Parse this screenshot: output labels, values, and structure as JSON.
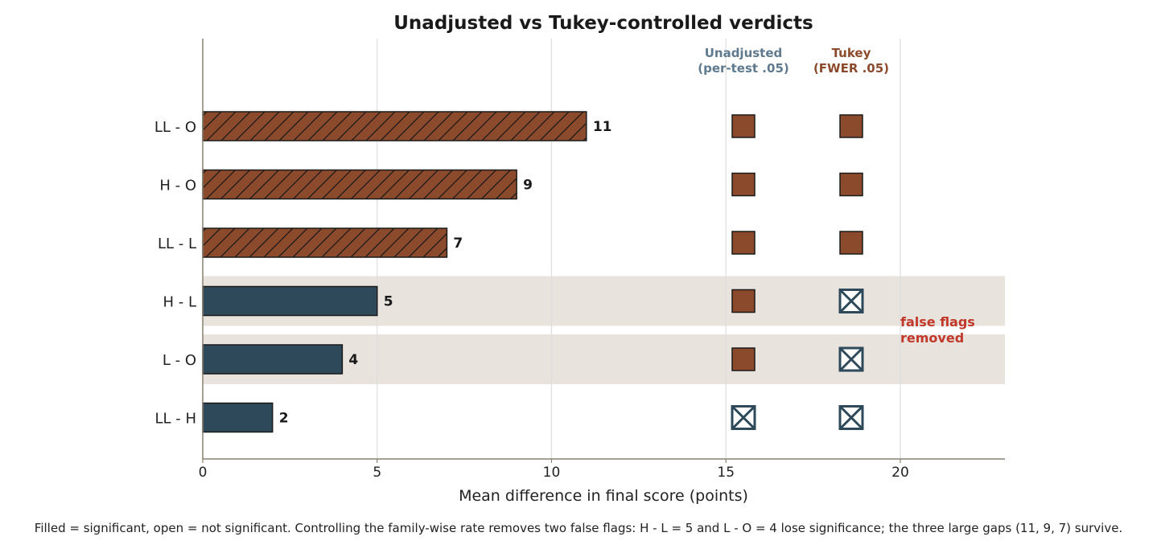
{
  "chart_data": {
    "type": "bar",
    "orientation": "horizontal",
    "title": "Unadjusted vs Tukey-controlled verdicts",
    "xlabel": "Mean difference in final score (points)",
    "ylabel": "",
    "xlim": [
      0,
      23
    ],
    "xticks": [
      0,
      5,
      10,
      15,
      20
    ],
    "grid": "vertical",
    "categories": [
      "LL - O",
      "H - O",
      "LL - L",
      "H - L",
      "L - O",
      "LL - H"
    ],
    "values": [
      11,
      9,
      7,
      5,
      4,
      2
    ],
    "data_labels": [
      "11",
      "9",
      "7",
      "5",
      "4",
      "2"
    ],
    "bar_styles": [
      "hatched",
      "hatched",
      "hatched",
      "solid",
      "solid",
      "solid"
    ],
    "highlighted_rows": [
      "H - L",
      "L - O"
    ],
    "columns": [
      {
        "title_line1": "Unadjusted",
        "title_line2": "(per-test .05)",
        "color": "#5f7a8f",
        "significant": [
          true,
          true,
          true,
          true,
          true,
          false
        ]
      },
      {
        "title_line1": "Tukey",
        "title_line2": "(FWER .05)",
        "color": "#8b4a2b",
        "significant": [
          true,
          true,
          true,
          false,
          false,
          false
        ]
      }
    ],
    "annotation_line1": "false flags",
    "annotation_line2": "removed",
    "caption": "Filled = significant, open = not significant. Controlling the family-wise rate removes two false flags: H - L = 5 and L - O = 4 lose significance; the three large gaps (11, 9, 7) survive."
  },
  "colors": {
    "significant_fill": "#8b4a2b",
    "not_significant_fill": "#2e4a5a",
    "highlight_band": "#e8e3dd",
    "annotation": "#c0392b",
    "axis": "#8a8070",
    "grid": "#dddddd"
  }
}
